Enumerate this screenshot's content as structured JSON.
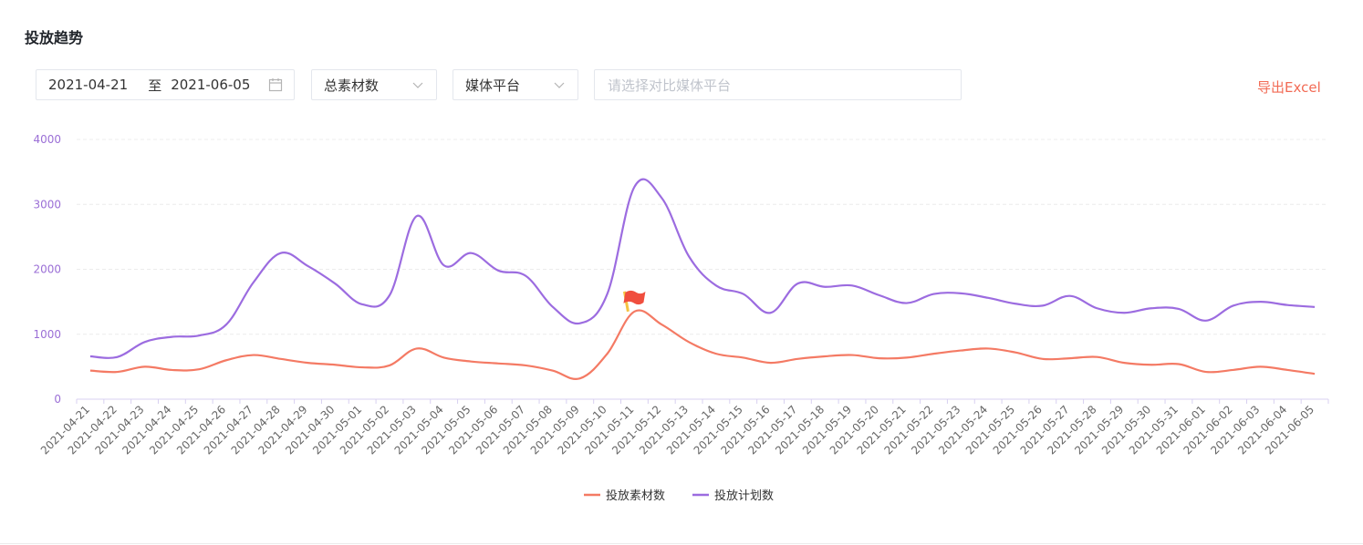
{
  "header": {
    "title": "投放趋势"
  },
  "filters": {
    "start_date": "2021-04-21",
    "range_separator": "至",
    "end_date": "2021-06-05",
    "metric_select": "总素材数",
    "platform_select": "媒体平台",
    "compare_placeholder": "请选择对比媒体平台"
  },
  "actions": {
    "export_label": "导出Excel"
  },
  "colors": {
    "series_material": "#f47a64",
    "series_plan": "#9c6ce0",
    "axis_label": "#9b6fd6",
    "export": "#f26b55"
  },
  "chart_data": {
    "type": "line",
    "smooth": true,
    "ylim": [
      0,
      4000
    ],
    "yticks": [
      0,
      1000,
      2000,
      3000,
      4000
    ],
    "grid": true,
    "legend_position": "bottom-center",
    "marker": {
      "type": "flag",
      "x": "2021-05-11",
      "series": "投放素材数"
    },
    "x": [
      "2021-04-21",
      "2021-04-22",
      "2021-04-23",
      "2021-04-24",
      "2021-04-25",
      "2021-04-26",
      "2021-04-27",
      "2021-04-28",
      "2021-04-29",
      "2021-04-30",
      "2021-05-01",
      "2021-05-02",
      "2021-05-03",
      "2021-05-04",
      "2021-05-05",
      "2021-05-06",
      "2021-05-07",
      "2021-05-08",
      "2021-05-09",
      "2021-05-10",
      "2021-05-11",
      "2021-05-12",
      "2021-05-13",
      "2021-05-14",
      "2021-05-15",
      "2021-05-16",
      "2021-05-17",
      "2021-05-18",
      "2021-05-19",
      "2021-05-20",
      "2021-05-21",
      "2021-05-22",
      "2021-05-23",
      "2021-05-24",
      "2021-05-25",
      "2021-05-26",
      "2021-05-27",
      "2021-05-28",
      "2021-05-29",
      "2021-05-30",
      "2021-05-31",
      "2021-06-01",
      "2021-06-02",
      "2021-06-03",
      "2021-06-04",
      "2021-06-05"
    ],
    "series": [
      {
        "name": "投放素材数",
        "color": "#f47a64",
        "values": [
          440,
          420,
          500,
          450,
          460,
          600,
          680,
          620,
          560,
          530,
          490,
          520,
          780,
          640,
          580,
          550,
          520,
          440,
          320,
          700,
          1350,
          1150,
          880,
          700,
          640,
          560,
          620,
          660,
          680,
          630,
          640,
          700,
          750,
          780,
          720,
          620,
          630,
          650,
          560,
          530,
          540,
          420,
          450,
          500,
          450,
          390
        ]
      },
      {
        "name": "投放计划数",
        "color": "#9c6ce0",
        "values": [
          660,
          650,
          880,
          960,
          980,
          1150,
          1800,
          2250,
          2050,
          1780,
          1460,
          1600,
          2820,
          2060,
          2250,
          1980,
          1900,
          1420,
          1170,
          1620,
          3270,
          3100,
          2200,
          1750,
          1620,
          1330,
          1780,
          1730,
          1750,
          1600,
          1480,
          1620,
          1630,
          1560,
          1470,
          1440,
          1590,
          1400,
          1330,
          1400,
          1390,
          1210,
          1440,
          1500,
          1450,
          1420
        ]
      }
    ]
  }
}
